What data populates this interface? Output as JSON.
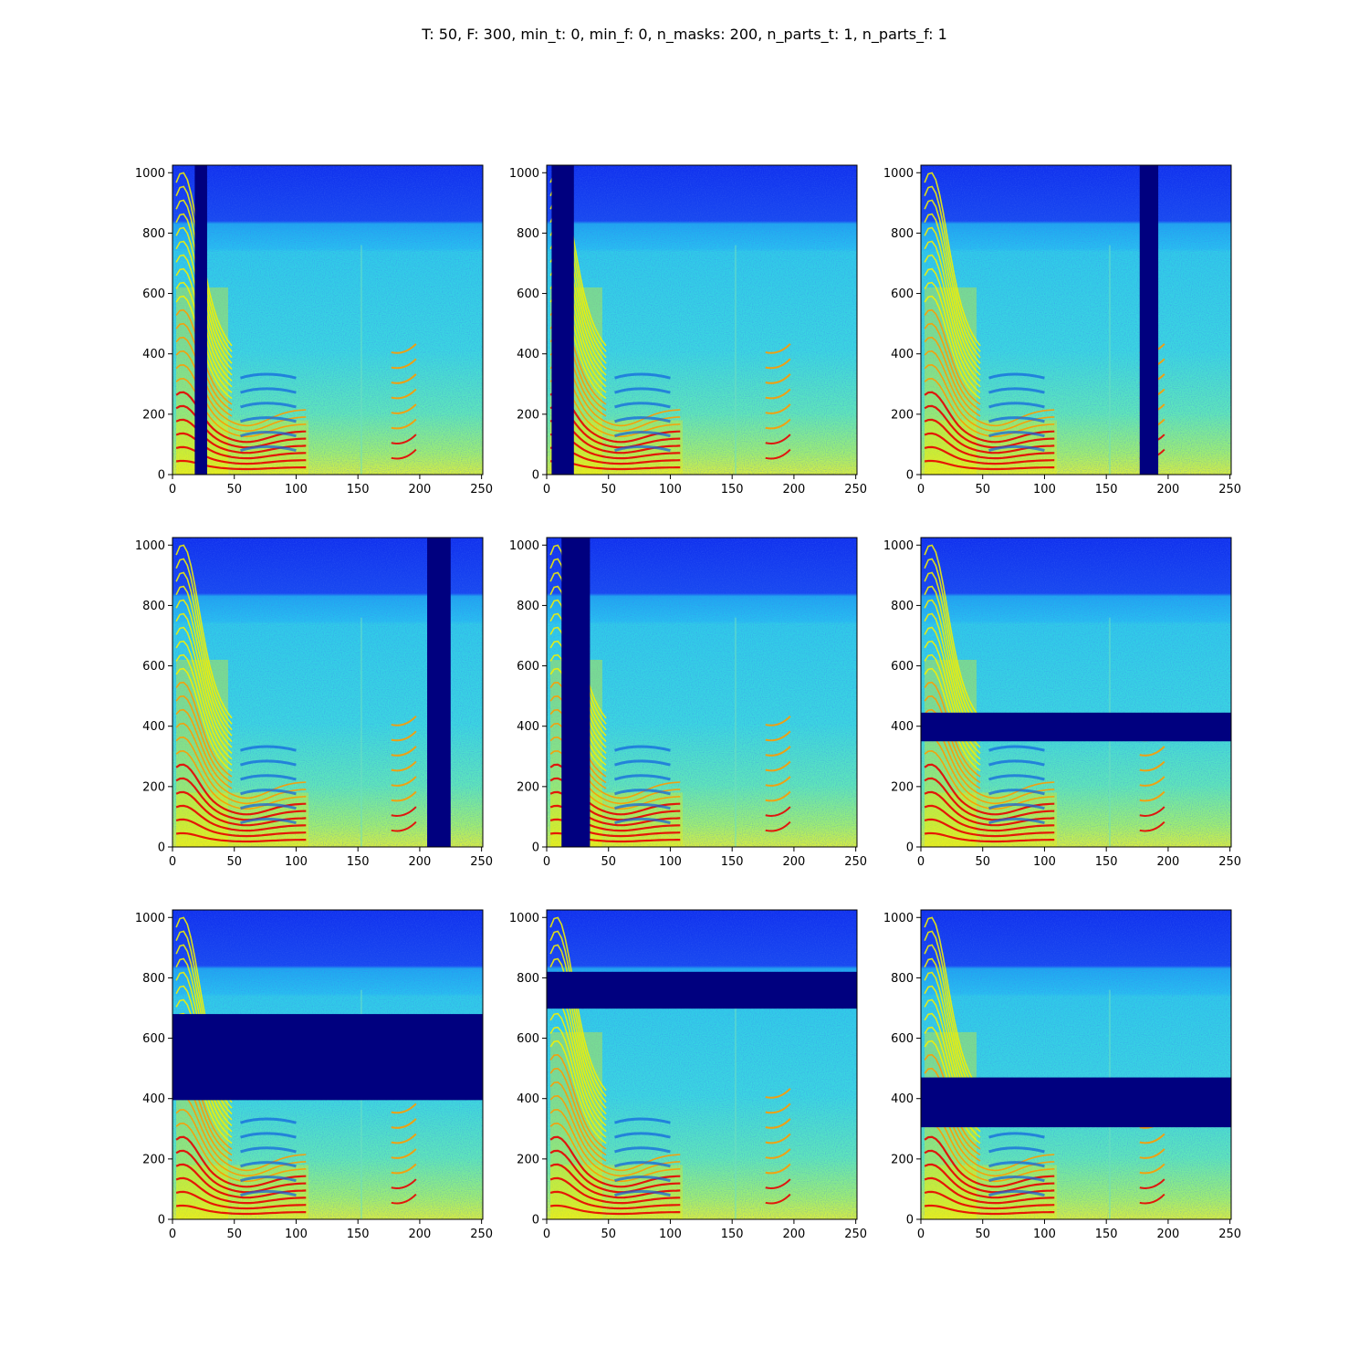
{
  "figure": {
    "title": "T: 50, F: 300, min_t: 0, min_f: 0, n_masks: 200, n_parts_t: 1, n_parts_f: 1"
  },
  "chart_data": [
    {
      "type": "heatmap",
      "xlim": [
        0,
        251
      ],
      "ylim": [
        0,
        1025
      ],
      "xticks": [
        0,
        50,
        100,
        150,
        200,
        250
      ],
      "yticks": [
        0,
        200,
        400,
        600,
        800,
        1000
      ],
      "mask": {
        "axis": "time",
        "range": [
          18,
          28
        ]
      }
    },
    {
      "type": "heatmap",
      "xlim": [
        0,
        251
      ],
      "ylim": [
        0,
        1025
      ],
      "xticks": [
        0,
        50,
        100,
        150,
        200,
        250
      ],
      "yticks": [
        0,
        200,
        400,
        600,
        800,
        1000
      ],
      "mask": {
        "axis": "time",
        "range": [
          4,
          22
        ]
      }
    },
    {
      "type": "heatmap",
      "xlim": [
        0,
        251
      ],
      "ylim": [
        0,
        1025
      ],
      "xticks": [
        0,
        50,
        100,
        150,
        200,
        250
      ],
      "yticks": [
        0,
        200,
        400,
        600,
        800,
        1000
      ],
      "mask": {
        "axis": "time",
        "range": [
          177,
          192
        ]
      }
    },
    {
      "type": "heatmap",
      "xlim": [
        0,
        251
      ],
      "ylim": [
        0,
        1025
      ],
      "xticks": [
        0,
        50,
        100,
        150,
        200,
        250
      ],
      "yticks": [
        0,
        200,
        400,
        600,
        800,
        1000
      ],
      "mask": {
        "axis": "time",
        "range": [
          206,
          225
        ]
      }
    },
    {
      "type": "heatmap",
      "xlim": [
        0,
        251
      ],
      "ylim": [
        0,
        1025
      ],
      "xticks": [
        0,
        50,
        100,
        150,
        200,
        250
      ],
      "yticks": [
        0,
        200,
        400,
        600,
        800,
        1000
      ],
      "mask": {
        "axis": "time",
        "range": [
          12,
          35
        ]
      }
    },
    {
      "type": "heatmap",
      "xlim": [
        0,
        251
      ],
      "ylim": [
        0,
        1025
      ],
      "xticks": [
        0,
        50,
        100,
        150,
        200,
        250
      ],
      "yticks": [
        0,
        200,
        400,
        600,
        800,
        1000
      ],
      "mask": {
        "axis": "freq",
        "range": [
          350,
          445
        ]
      }
    },
    {
      "type": "heatmap",
      "xlim": [
        0,
        251
      ],
      "ylim": [
        0,
        1025
      ],
      "xticks": [
        0,
        50,
        100,
        150,
        200,
        250
      ],
      "yticks": [
        0,
        200,
        400,
        600,
        800,
        1000
      ],
      "mask": {
        "axis": "freq",
        "range": [
          395,
          680
        ]
      }
    },
    {
      "type": "heatmap",
      "xlim": [
        0,
        251
      ],
      "ylim": [
        0,
        1025
      ],
      "xticks": [
        0,
        50,
        100,
        150,
        200,
        250
      ],
      "yticks": [
        0,
        200,
        400,
        600,
        800,
        1000
      ],
      "mask": {
        "axis": "freq",
        "range": [
          698,
          820
        ]
      }
    },
    {
      "type": "heatmap",
      "xlim": [
        0,
        251
      ],
      "ylim": [
        0,
        1025
      ],
      "xticks": [
        0,
        50,
        100,
        150,
        200,
        250
      ],
      "yticks": [
        0,
        200,
        400,
        600,
        800,
        1000
      ],
      "mask": {
        "axis": "freq",
        "range": [
          305,
          470
        ]
      }
    }
  ],
  "colors": {
    "bg_deep": "#0a2ff0",
    "bg_mid": "#1ec8ee",
    "bg_low": "#5ee6b0",
    "yellow": "#f4f000",
    "orange": "#ff9a00",
    "red": "#e80000",
    "mask": "#00007f"
  }
}
